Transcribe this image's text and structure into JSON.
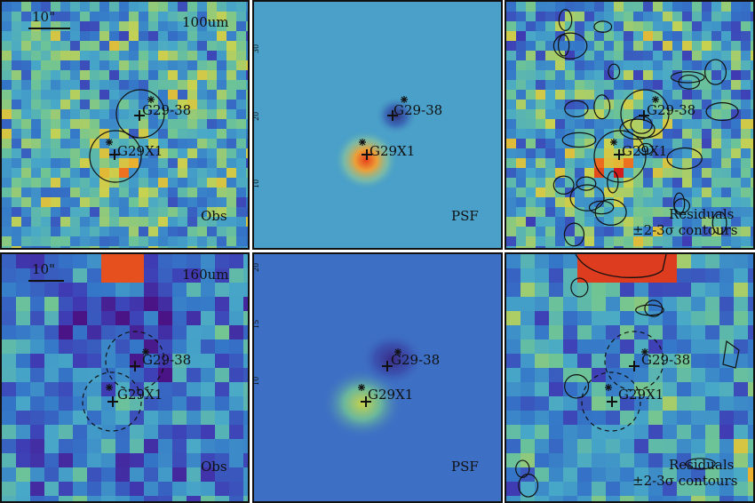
{
  "figure": {
    "rows": [
      {
        "band": "100um",
        "scale_bar": "10\"",
        "panels": [
          {
            "kind": "obs",
            "caption": "Obs",
            "seed": 11,
            "mean": 0.48,
            "spread": 0.5,
            "circles": "solid"
          },
          {
            "kind": "psf",
            "caption": "PSF",
            "seed": 0,
            "circles": "none"
          },
          {
            "kind": "res",
            "caption_1": "Residuals",
            "caption_2": "±2-3σ contours",
            "seed": 23,
            "mean": 0.47,
            "spread": 0.55,
            "circles": "solid"
          }
        ],
        "psf_axis_ticks": [
          "30",
          "20",
          "10"
        ]
      },
      {
        "band": "160um",
        "scale_bar": "10\"",
        "panels": [
          {
            "kind": "obs",
            "caption": "Obs",
            "seed": 37,
            "mean": 0.35,
            "spread": 0.45,
            "circles": "dashed"
          },
          {
            "kind": "psf",
            "caption": "PSF",
            "seed": 0,
            "circles": "none"
          },
          {
            "kind": "res",
            "caption_1": "Residuals",
            "caption_2": "±2-3σ contours",
            "seed": 51,
            "mean": 0.42,
            "spread": 0.45,
            "circles": "dashed"
          }
        ],
        "psf_axis_ticks": [
          "20",
          "15",
          "10"
        ]
      }
    ],
    "sources": [
      {
        "name": "G29-38"
      },
      {
        "name": "G29X1"
      }
    ],
    "colors": {
      "border": "#111111",
      "psf_bg_100": "#4aa0c8",
      "psf_bg_160": "#3d6fc4"
    }
  }
}
